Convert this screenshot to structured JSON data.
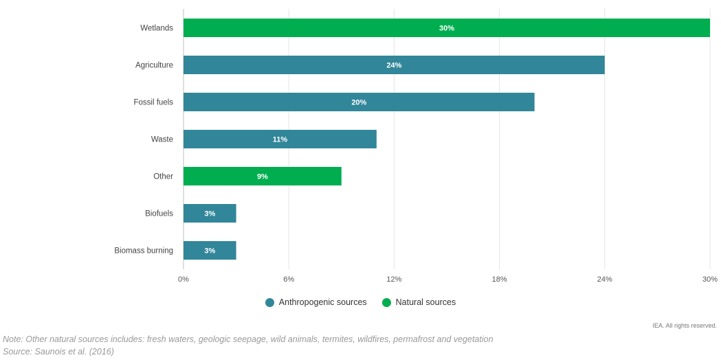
{
  "chart_data": {
    "type": "bar",
    "orientation": "horizontal",
    "categories": [
      "Wetlands",
      "Agriculture",
      "Fossil fuels",
      "Waste",
      "Other",
      "Biofuels",
      "Biomass burning"
    ],
    "values": [
      30,
      24,
      20,
      11,
      9,
      3,
      3
    ],
    "value_labels": [
      "30%",
      "24%",
      "20%",
      "11%",
      "9%",
      "3%",
      "3%"
    ],
    "groups": [
      "natural",
      "anthropogenic",
      "anthropogenic",
      "anthropogenic",
      "natural",
      "anthropogenic",
      "anthropogenic"
    ],
    "xlim": [
      0,
      30
    ],
    "xticks": [
      0,
      6,
      12,
      18,
      24,
      30
    ],
    "xtick_labels": [
      "0%",
      "6%",
      "12%",
      "18%",
      "24%",
      "30%"
    ],
    "grid": true,
    "legend_position": "bottom-center",
    "colors": {
      "anthropogenic": "#318699",
      "natural": "#00ae50"
    },
    "legend": [
      {
        "key": "anthropogenic",
        "label": "Anthropogenic sources"
      },
      {
        "key": "natural",
        "label": "Natural sources"
      }
    ]
  },
  "credit": "IEA. All rights reserved.",
  "note": "Note: Other natural sources includes: fresh waters, geologic seepage, wild animals, termites, wildfires, permafrost and vegetation",
  "source": "Source: Saunois et al. (2016)"
}
